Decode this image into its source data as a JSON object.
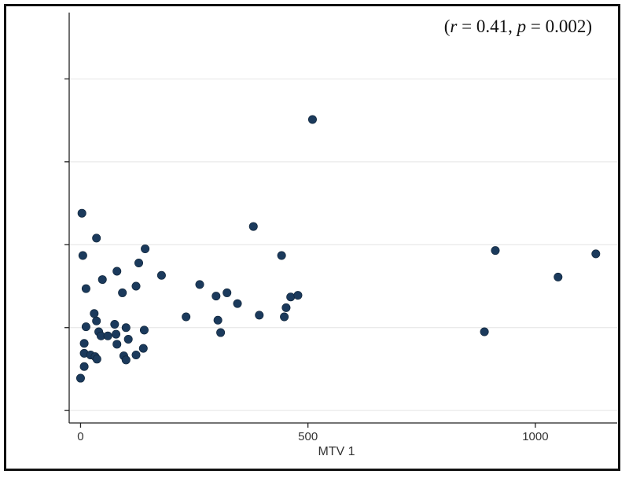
{
  "chart_data": {
    "type": "scatter",
    "xlabel": "MTV 1",
    "ylabel": "",
    "xlim": [
      -25,
      1180
    ],
    "ylim": [
      -1.15,
      3.8
    ],
    "x_ticks": [
      0,
      500,
      1000
    ],
    "x_tick_labels": [
      "0",
      "500",
      "1000"
    ],
    "y_ticks": [
      -1,
      0,
      1,
      2,
      3
    ],
    "y_tick_labels": [
      "",
      "",
      "",
      "",
      ""
    ],
    "grid": true,
    "annotation": {
      "prefix": "(",
      "r_symbol": "r",
      "r_text": " = 0.41, ",
      "p_symbol": "p",
      "p_text": " = 0.002)",
      "r": 0.41,
      "p": 0.002
    },
    "marker_color": "#1b3a5c",
    "grid_color": "#e4e4e4",
    "points": [
      {
        "x": 3,
        "y": 1.38
      },
      {
        "x": 35,
        "y": 1.08
      },
      {
        "x": 5,
        "y": 0.87
      },
      {
        "x": 12,
        "y": 0.47
      },
      {
        "x": 48,
        "y": 0.58
      },
      {
        "x": 80,
        "y": 0.68
      },
      {
        "x": 92,
        "y": 0.42
      },
      {
        "x": 122,
        "y": 0.5
      },
      {
        "x": 128,
        "y": 0.78
      },
      {
        "x": 142,
        "y": 0.95
      },
      {
        "x": 178,
        "y": 0.63
      },
      {
        "x": 12,
        "y": 0.01
      },
      {
        "x": 30,
        "y": 0.17
      },
      {
        "x": 35,
        "y": 0.08
      },
      {
        "x": 40,
        "y": -0.05
      },
      {
        "x": 45,
        "y": -0.1
      },
      {
        "x": 60,
        "y": -0.1
      },
      {
        "x": 75,
        "y": 0.04
      },
      {
        "x": 78,
        "y": -0.08
      },
      {
        "x": 80,
        "y": -0.2
      },
      {
        "x": 100,
        "y": 0.0
      },
      {
        "x": 105,
        "y": -0.14
      },
      {
        "x": 140,
        "y": -0.03
      },
      {
        "x": 138,
        "y": -0.25
      },
      {
        "x": 8,
        "y": -0.19
      },
      {
        "x": 8,
        "y": -0.31
      },
      {
        "x": 22,
        "y": -0.33
      },
      {
        "x": 32,
        "y": -0.35
      },
      {
        "x": 36,
        "y": -0.38
      },
      {
        "x": 95,
        "y": -0.34
      },
      {
        "x": 100,
        "y": -0.39
      },
      {
        "x": 122,
        "y": -0.33
      },
      {
        "x": 8,
        "y": -0.47
      },
      {
        "x": 0,
        "y": -0.61
      },
      {
        "x": 232,
        "y": 0.13
      },
      {
        "x": 262,
        "y": 0.52
      },
      {
        "x": 298,
        "y": 0.38
      },
      {
        "x": 302,
        "y": 0.09
      },
      {
        "x": 308,
        "y": -0.06
      },
      {
        "x": 322,
        "y": 0.42
      },
      {
        "x": 345,
        "y": 0.29
      },
      {
        "x": 380,
        "y": 1.22
      },
      {
        "x": 393,
        "y": 0.15
      },
      {
        "x": 442,
        "y": 0.87
      },
      {
        "x": 448,
        "y": 0.13
      },
      {
        "x": 452,
        "y": 0.24
      },
      {
        "x": 462,
        "y": 0.37
      },
      {
        "x": 478,
        "y": 0.39
      },
      {
        "x": 510,
        "y": 2.51
      },
      {
        "x": 888,
        "y": -0.05
      },
      {
        "x": 912,
        "y": 0.93
      },
      {
        "x": 1050,
        "y": 0.61
      },
      {
        "x": 1133,
        "y": 0.89
      }
    ]
  }
}
